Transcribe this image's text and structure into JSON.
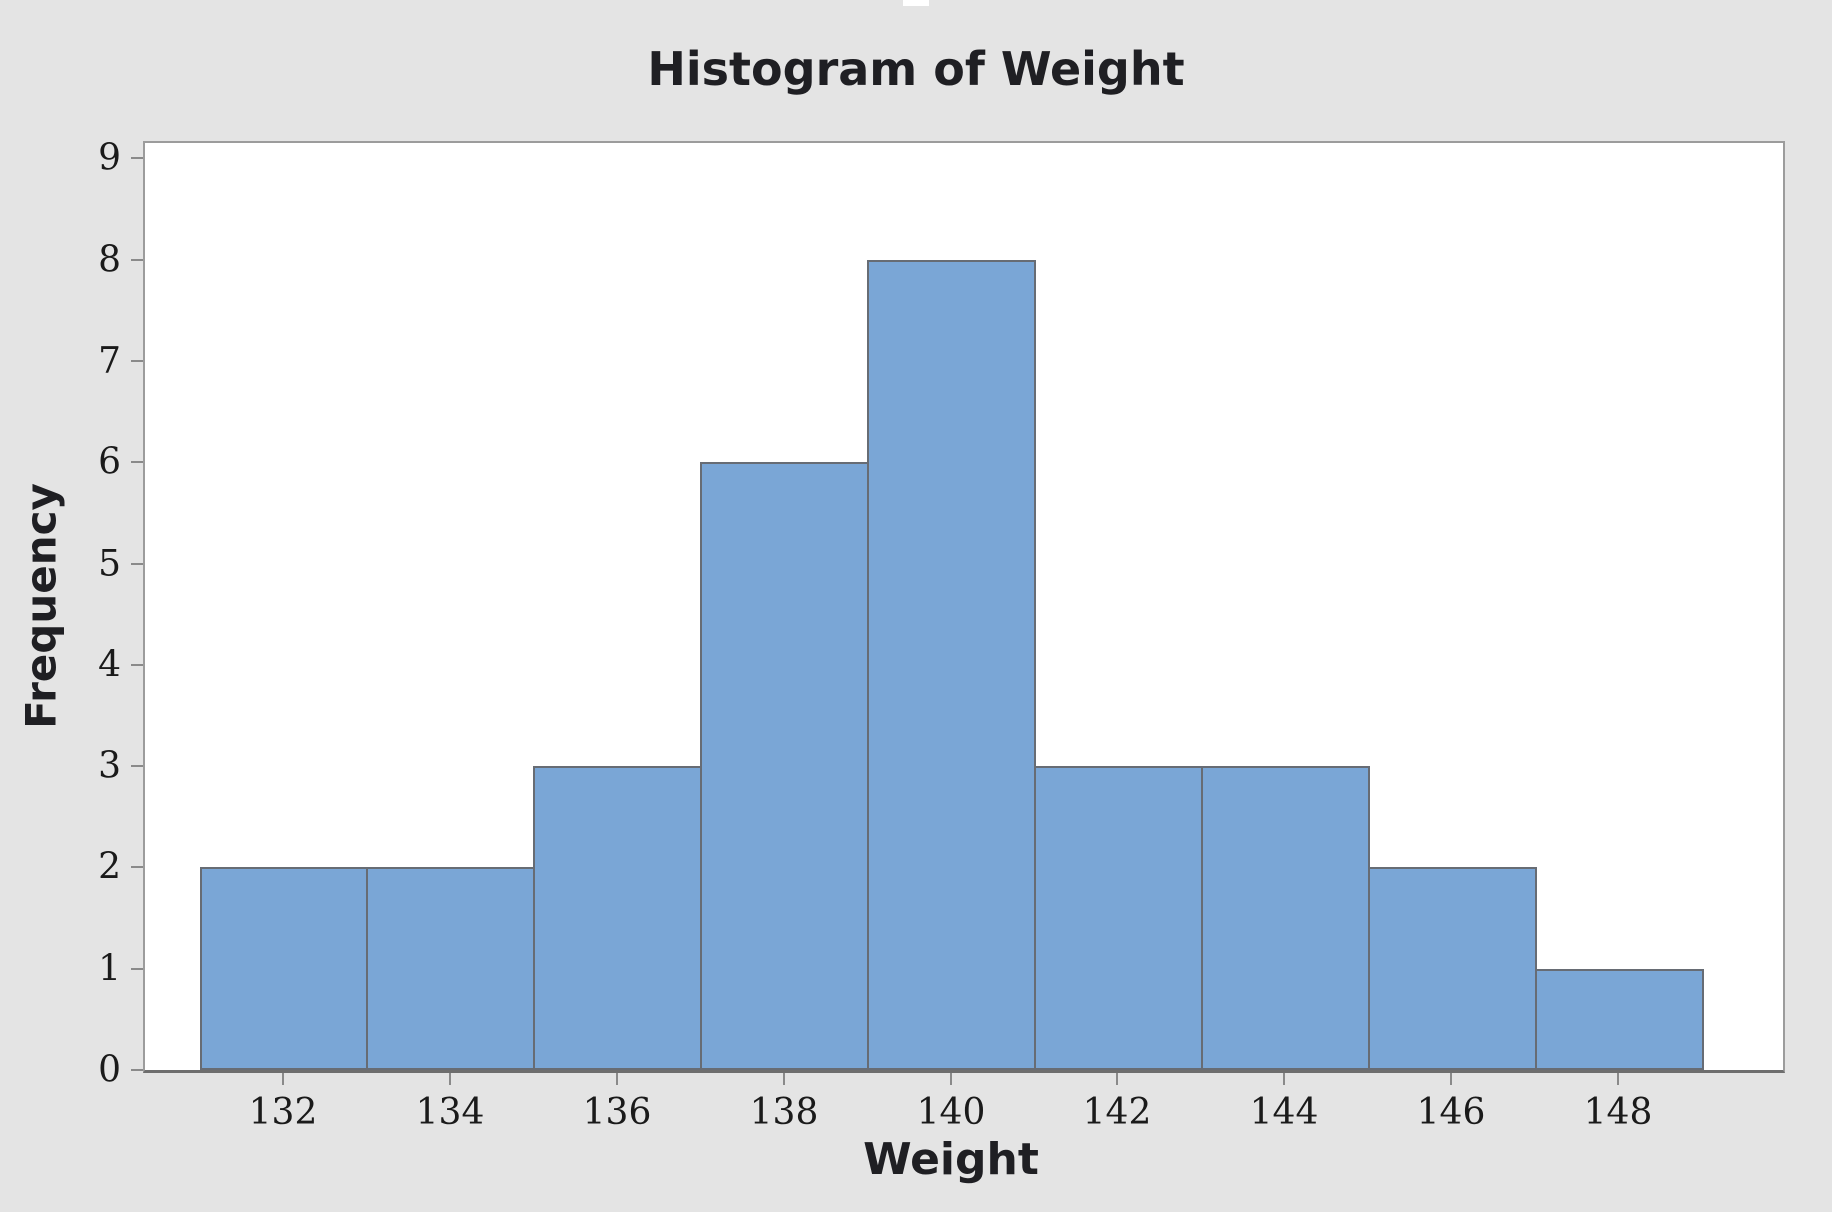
{
  "window": {
    "page_background": "#e4e4e4",
    "top_notch_color": "#ffffff"
  },
  "chart_data": {
    "type": "bar",
    "subtype": "histogram",
    "title": "Histogram of Weight",
    "xlabel": "Weight",
    "ylabel": "Frequency",
    "bin_width": 2,
    "bins": [
      {
        "start": 131,
        "end": 133,
        "frequency": 2
      },
      {
        "start": 133,
        "end": 135,
        "frequency": 2
      },
      {
        "start": 135,
        "end": 137,
        "frequency": 3
      },
      {
        "start": 137,
        "end": 139,
        "frequency": 6
      },
      {
        "start": 139,
        "end": 141,
        "frequency": 8
      },
      {
        "start": 141,
        "end": 143,
        "frequency": 3
      },
      {
        "start": 143,
        "end": 145,
        "frequency": 3
      },
      {
        "start": 145,
        "end": 147,
        "frequency": 2
      },
      {
        "start": 147,
        "end": 149,
        "frequency": 1
      }
    ],
    "x_ticks": [
      132,
      134,
      136,
      138,
      140,
      142,
      144,
      146,
      148
    ],
    "y_ticks": [
      0,
      1,
      2,
      3,
      4,
      5,
      6,
      7,
      8,
      9
    ],
    "xlim": [
      130.3,
      150.0
    ],
    "ylim": [
      0,
      9
    ],
    "grid": false,
    "legend": "none",
    "colors": {
      "bar_fill": "#7aa6d6",
      "bar_stroke": "#676c74",
      "plot_background": "#ffffff",
      "plot_border": "#9c9c9c",
      "axis_line": "#6e6e6e",
      "tick_mark": "#8a8a8a",
      "text": "#1f1f23"
    }
  }
}
